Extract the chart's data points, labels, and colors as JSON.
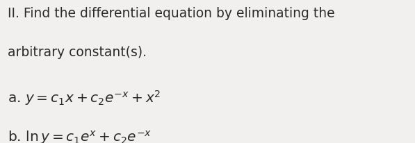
{
  "background_color": "#f2f0ee",
  "line1": "II. Find the differential equation by eliminating the",
  "line2": "arbitrary constant(s).",
  "text_color": "#2a2a2a",
  "font_size_heading": 13.5,
  "font_size_math": 14.5
}
